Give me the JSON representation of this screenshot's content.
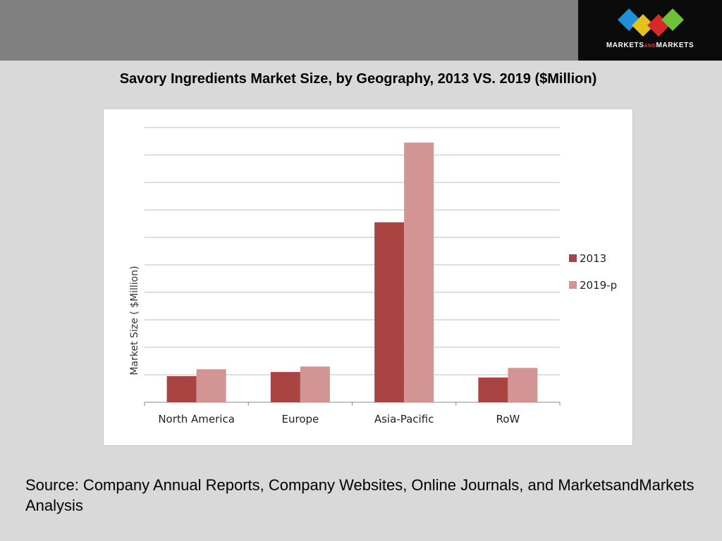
{
  "logo": {
    "text_left": "MARKETS",
    "text_mid": "AND",
    "text_right": "MARKETS",
    "diamond_colors": [
      "#1f8fd6",
      "#e2c21f",
      "#d62a2a",
      "#6fc13a"
    ]
  },
  "slide_title": "Savory Ingredients Market Size, by Geography, 2013 VS. 2019 ($Million)",
  "source": "Source: Company Annual Reports, Company Websites, Online Journals, and MarketsandMarkets Analysis",
  "colors": {
    "background": "#d9d9d9",
    "top_band": "#808080",
    "series_2013": "#a94442",
    "series_2019": "#d29593"
  },
  "chart_data": {
    "type": "bar",
    "title": "",
    "xlabel": "",
    "ylabel": "Market Size ( $Million)",
    "ylim": [
      0,
      10
    ],
    "grid": true,
    "legend_position": "right",
    "categories": [
      "North America",
      "Europe",
      "Asia-Pacific",
      "RoW"
    ],
    "series": [
      {
        "name": "2013",
        "values": [
          0.95,
          1.1,
          6.55,
          0.9
        ]
      },
      {
        "name": "2019-p",
        "values": [
          1.2,
          1.3,
          9.45,
          1.25
        ]
      }
    ]
  }
}
